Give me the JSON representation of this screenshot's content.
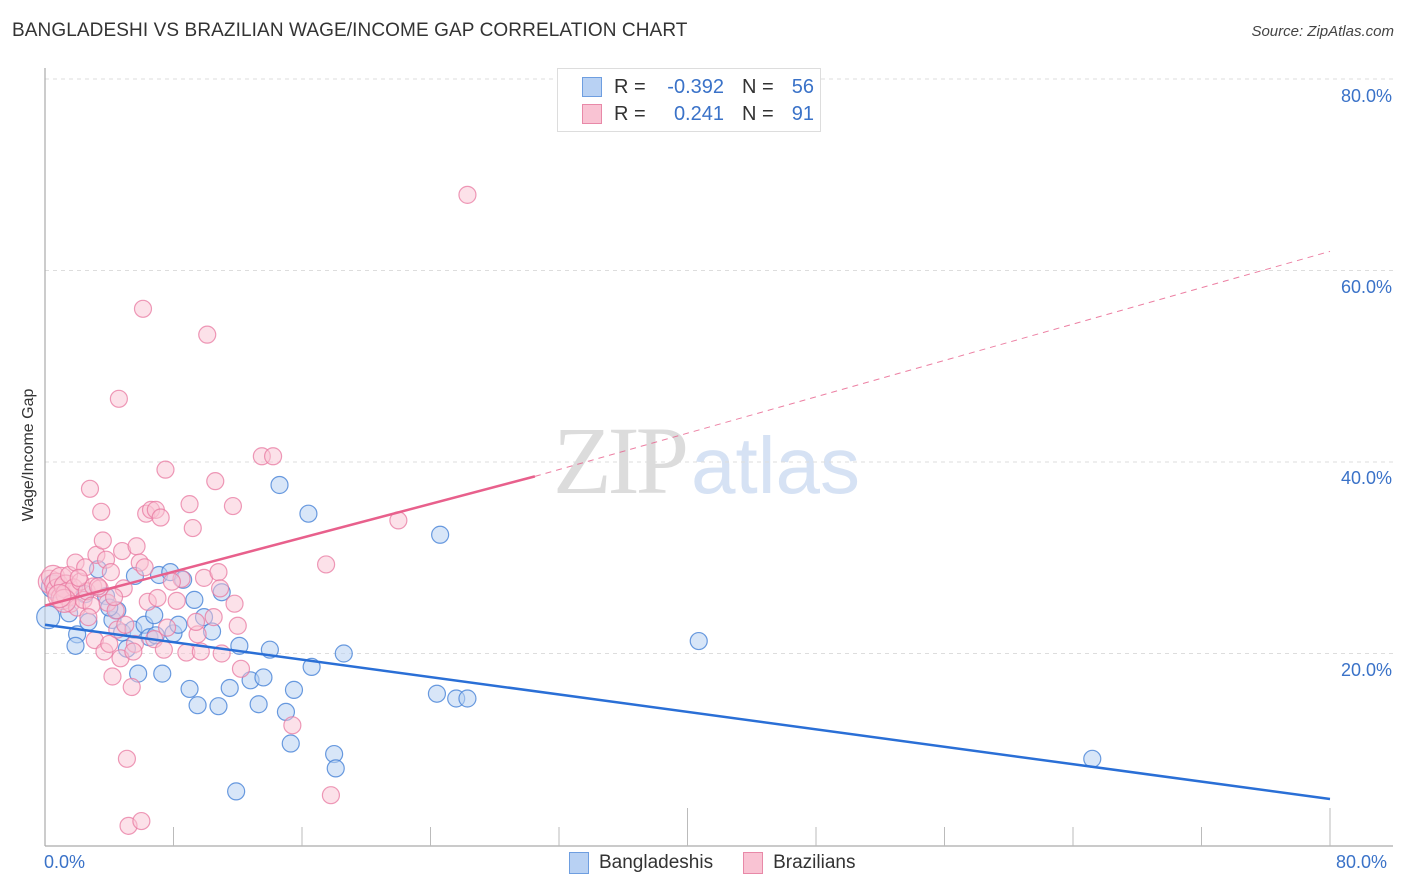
{
  "header": {
    "title": "BANGLADESHI VS BRAZILIAN WAGE/INCOME GAP CORRELATION CHART",
    "source": "Source: ZipAtlas.com"
  },
  "legend": {
    "series": [
      {
        "name": "Bangladeshis",
        "r_label": "R =",
        "r_value": "-0.392",
        "n_label": "N =",
        "n_value": "56",
        "fill": "#b8d1f3",
        "stroke": "#6e9ee0"
      },
      {
        "name": "Brazilians",
        "r_label": "R =",
        "r_value": "0.241",
        "n_label": "N =",
        "n_value": "91",
        "fill": "#f9c3d3",
        "stroke": "#e889a8"
      }
    ]
  },
  "axes": {
    "y_label": "Wage/Income Gap",
    "y_ticks": [
      "80.0%",
      "60.0%",
      "40.0%",
      "20.0%"
    ],
    "x_ticks": [
      "0.0%",
      "80.0%"
    ]
  },
  "watermark": {
    "zip": "ZIP",
    "atlas": "atlas"
  },
  "colors": {
    "blue_line": "#2a6fd6",
    "pink_line": "#e8608c",
    "tick_text": "#3a72c8",
    "grid": "#dddddd"
  },
  "chart_data": {
    "type": "scatter",
    "title": "BANGLADESHI VS BRAZILIAN WAGE/INCOME GAP CORRELATION CHART",
    "xlabel": "",
    "ylabel": "Wage/Income Gap",
    "xlim": [
      0,
      80
    ],
    "ylim": [
      0,
      80
    ],
    "grid": true,
    "legend_position": "top-center",
    "series": [
      {
        "name": "Bangladeshis",
        "color": "#6e9ee0",
        "R": -0.392,
        "N": 56,
        "trend": {
          "x": [
            0,
            80
          ],
          "y": [
            23.0,
            4.8
          ]
        },
        "points": [
          [
            0.2,
            23.8
          ],
          [
            1.5,
            24.2
          ],
          [
            2.0,
            22.0
          ],
          [
            1.9,
            20.8
          ],
          [
            2.7,
            23.3
          ],
          [
            3.3,
            28.8
          ],
          [
            3.8,
            26.0
          ],
          [
            4.2,
            23.5
          ],
          [
            4.5,
            24.5
          ],
          [
            4.8,
            22.2
          ],
          [
            5.1,
            20.5
          ],
          [
            5.5,
            22.5
          ],
          [
            5.6,
            28.1
          ],
          [
            5.8,
            17.9
          ],
          [
            6.2,
            23.0
          ],
          [
            6.5,
            21.7
          ],
          [
            6.8,
            24.0
          ],
          [
            7.1,
            28.2
          ],
          [
            7.3,
            17.9
          ],
          [
            7.8,
            28.5
          ],
          [
            8.0,
            22.1
          ],
          [
            8.3,
            23.0
          ],
          [
            8.6,
            27.7
          ],
          [
            9.0,
            16.3
          ],
          [
            9.3,
            25.6
          ],
          [
            9.5,
            14.6
          ],
          [
            9.9,
            23.8
          ],
          [
            10.4,
            22.3
          ],
          [
            10.8,
            14.5
          ],
          [
            11.0,
            26.4
          ],
          [
            11.5,
            16.4
          ],
          [
            11.9,
            5.6
          ],
          [
            12.1,
            20.8
          ],
          [
            12.8,
            17.2
          ],
          [
            13.3,
            14.7
          ],
          [
            13.6,
            17.5
          ],
          [
            14.0,
            20.4
          ],
          [
            14.6,
            37.6
          ],
          [
            15.0,
            13.9
          ],
          [
            15.3,
            10.6
          ],
          [
            15.5,
            16.2
          ],
          [
            16.4,
            34.6
          ],
          [
            16.6,
            18.6
          ],
          [
            18.0,
            9.5
          ],
          [
            18.1,
            8.0
          ],
          [
            18.6,
            20.0
          ],
          [
            24.4,
            15.8
          ],
          [
            24.6,
            32.4
          ],
          [
            25.6,
            15.3
          ],
          [
            26.3,
            15.3
          ],
          [
            40.7,
            21.3
          ],
          [
            65.2,
            9.0
          ],
          [
            0.5,
            27.0
          ],
          [
            2.5,
            26.2
          ],
          [
            6.9,
            21.9
          ],
          [
            4.0,
            24.8
          ]
        ]
      },
      {
        "name": "Brazilians",
        "color": "#e889a8",
        "R": 0.241,
        "N": 91,
        "trend": {
          "x": [
            0,
            30.5
          ],
          "y": [
            25.0,
            38.5
          ]
        },
        "trend_extension": {
          "x": [
            30.5,
            80
          ],
          "y": [
            38.5,
            62.0
          ],
          "style": "dashed"
        },
        "points": [
          [
            0.3,
            27.5
          ],
          [
            0.5,
            28.0
          ],
          [
            0.7,
            27.2
          ],
          [
            0.8,
            26.6
          ],
          [
            1.0,
            27.8
          ],
          [
            1.1,
            25.8
          ],
          [
            1.3,
            27.0
          ],
          [
            1.4,
            26.2
          ],
          [
            1.5,
            28.2
          ],
          [
            1.6,
            25.2
          ],
          [
            1.8,
            26.9
          ],
          [
            1.9,
            29.5
          ],
          [
            2.0,
            24.8
          ],
          [
            2.2,
            27.5
          ],
          [
            2.4,
            25.6
          ],
          [
            2.5,
            29.0
          ],
          [
            2.6,
            26.5
          ],
          [
            2.8,
            37.2
          ],
          [
            2.9,
            25.0
          ],
          [
            3.0,
            27.0
          ],
          [
            3.1,
            21.4
          ],
          [
            3.2,
            30.3
          ],
          [
            3.4,
            26.8
          ],
          [
            3.5,
            34.8
          ],
          [
            3.6,
            31.8
          ],
          [
            3.7,
            20.2
          ],
          [
            3.8,
            29.8
          ],
          [
            3.9,
            25.3
          ],
          [
            4.0,
            21.0
          ],
          [
            4.1,
            28.5
          ],
          [
            4.2,
            17.6
          ],
          [
            4.4,
            24.5
          ],
          [
            4.5,
            22.5
          ],
          [
            4.6,
            46.6
          ],
          [
            4.7,
            19.5
          ],
          [
            4.8,
            30.7
          ],
          [
            4.9,
            26.8
          ],
          [
            5.0,
            23.0
          ],
          [
            5.1,
            9.0
          ],
          [
            5.2,
            2.0
          ],
          [
            5.4,
            16.5
          ],
          [
            5.6,
            21.0
          ],
          [
            5.7,
            31.2
          ],
          [
            5.9,
            29.5
          ],
          [
            6.0,
            2.5
          ],
          [
            6.1,
            56.0
          ],
          [
            6.3,
            34.6
          ],
          [
            6.4,
            25.4
          ],
          [
            6.6,
            35.0
          ],
          [
            6.8,
            21.5
          ],
          [
            6.9,
            35.0
          ],
          [
            7.0,
            25.8
          ],
          [
            7.2,
            34.2
          ],
          [
            7.4,
            20.4
          ],
          [
            7.6,
            22.7
          ],
          [
            7.5,
            39.2
          ],
          [
            8.5,
            27.8
          ],
          [
            8.8,
            20.1
          ],
          [
            9.0,
            35.6
          ],
          [
            9.2,
            33.1
          ],
          [
            9.5,
            22.0
          ],
          [
            9.7,
            20.2
          ],
          [
            9.9,
            27.9
          ],
          [
            10.1,
            53.3
          ],
          [
            10.5,
            23.8
          ],
          [
            10.6,
            38.0
          ],
          [
            10.8,
            28.5
          ],
          [
            11.0,
            20.0
          ],
          [
            11.7,
            35.4
          ],
          [
            11.8,
            25.2
          ],
          [
            12.0,
            22.9
          ],
          [
            12.2,
            18.4
          ],
          [
            13.5,
            40.6
          ],
          [
            14.2,
            40.6
          ],
          [
            15.4,
            12.5
          ],
          [
            17.5,
            29.3
          ],
          [
            17.8,
            5.2
          ],
          [
            22.0,
            33.9
          ],
          [
            26.3,
            67.9
          ],
          [
            3.3,
            27.0
          ],
          [
            1.2,
            25.5
          ],
          [
            2.1,
            27.9
          ],
          [
            0.9,
            26.0
          ],
          [
            2.7,
            23.8
          ],
          [
            4.3,
            25.9
          ],
          [
            5.5,
            20.2
          ],
          [
            6.2,
            29.0
          ],
          [
            7.9,
            27.5
          ],
          [
            8.2,
            25.5
          ],
          [
            9.4,
            23.3
          ],
          [
            10.9,
            26.8
          ]
        ]
      }
    ]
  }
}
